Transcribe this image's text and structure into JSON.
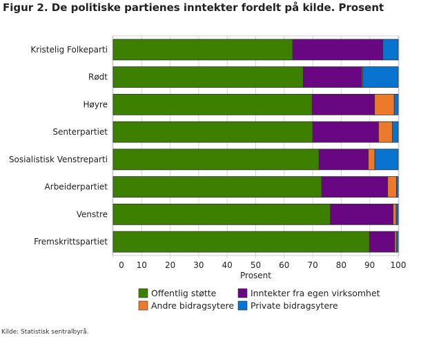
{
  "chart_data": {
    "type": "bar",
    "orientation": "horizontal",
    "stacked": true,
    "title": "Figur 2. De politiske partienes inntekter fordelt på kilde. Prosent",
    "xlabel": "Prosent",
    "ylabel": "",
    "xlim": [
      0,
      100
    ],
    "xticks": [
      0,
      10,
      20,
      30,
      40,
      50,
      60,
      70,
      80,
      90,
      100
    ],
    "grid": true,
    "legend_position": "bottom",
    "categories": [
      "Kristelig Folkeparti",
      "Rødt",
      "Høyre",
      "Senterpartiet",
      "Sosialistisk Venstreparti",
      "Arbeiderpartiet",
      "Venstre",
      "Fremskrittspartiet"
    ],
    "series": [
      {
        "name": "Offentlig støtte",
        "color": "#3d8000",
        "values": [
          63.0,
          66.7,
          69.8,
          70.0,
          72.2,
          73.1,
          76.2,
          89.9
        ]
      },
      {
        "name": "Inntekter fra egen virksomhet",
        "color": "#690782",
        "values": [
          31.6,
          20.5,
          21.9,
          23.1,
          17.3,
          23.2,
          22.0,
          8.9
        ]
      },
      {
        "name": "Andre bidragsytere",
        "color": "#ec7a2a",
        "values": [
          0.0,
          0.3,
          6.9,
          4.9,
          2.3,
          3.1,
          1.1,
          0.6
        ]
      },
      {
        "name": "Private bidragsytere",
        "color": "#0874d0",
        "values": [
          5.4,
          12.5,
          1.4,
          2.0,
          8.2,
          0.6,
          0.7,
          0.6
        ]
      }
    ],
    "legend_order": [
      0,
      1,
      2,
      3
    ]
  },
  "source": "Kilde: Statistisk sentralbyrå."
}
